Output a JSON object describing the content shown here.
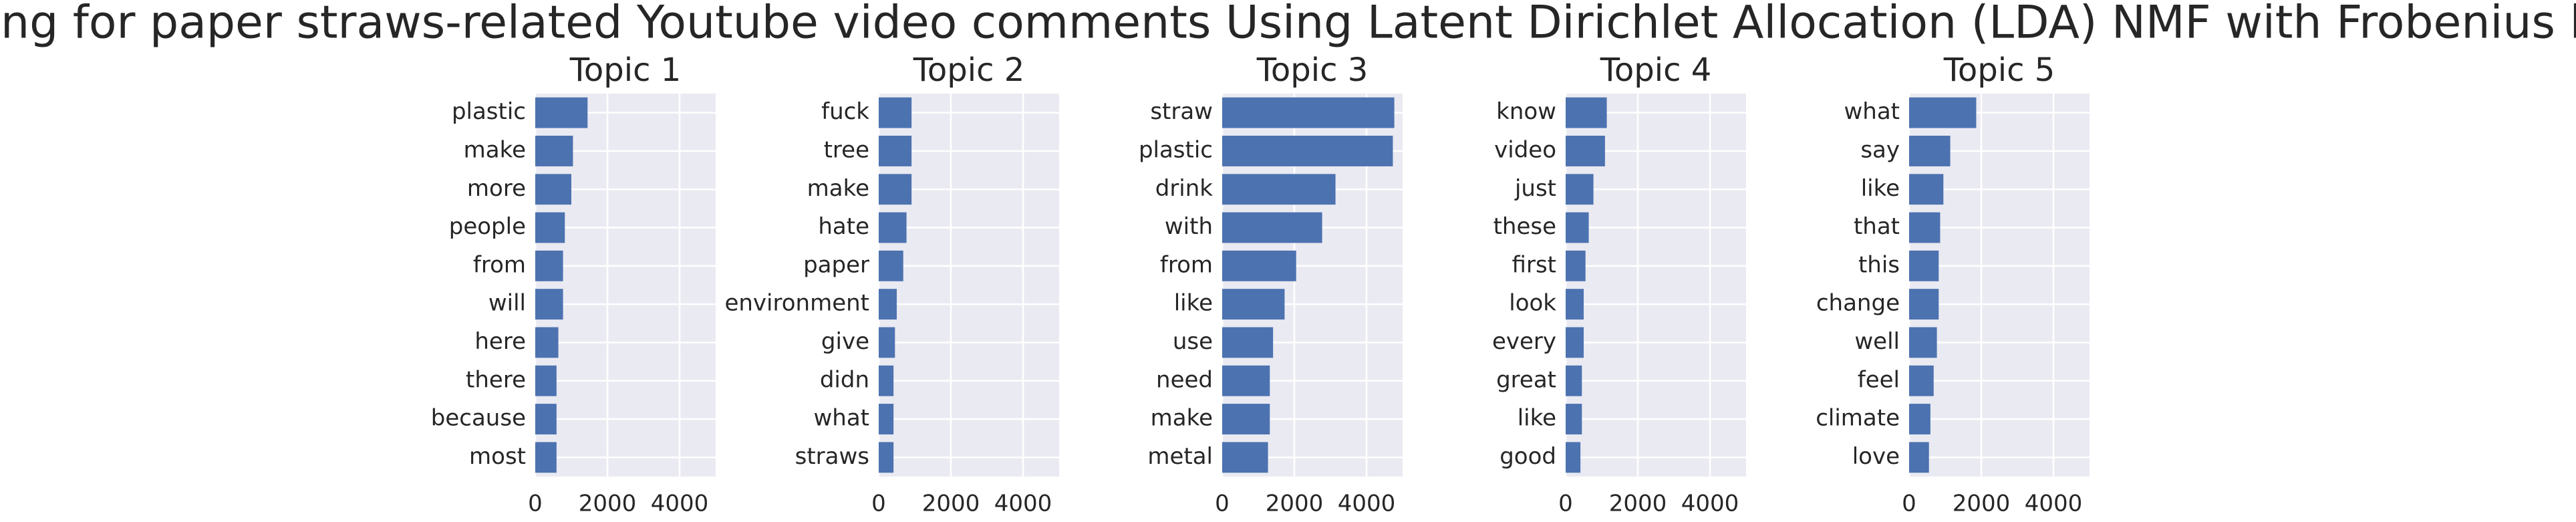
{
  "title": "Topic modeling for paper straws-related Youtube video comments Using Latent Dirichlet Allocation (LDA) NMF with Frobenius loss function",
  "chart_data": [
    {
      "type": "bar",
      "orientation": "horizontal",
      "title": "Topic 1",
      "color": "#4c72b0",
      "grid": true,
      "categories": [
        "plastic",
        "make",
        "more",
        "people",
        "from",
        "will",
        "here",
        "there",
        "because",
        "most"
      ],
      "values": [
        1450,
        1045,
        1000,
        820,
        770,
        770,
        640,
        590,
        590,
        590
      ],
      "xlim": [
        0,
        5000
      ],
      "xticks": [
        0,
        2000,
        4000
      ]
    },
    {
      "type": "bar",
      "orientation": "horizontal",
      "title": "Topic 2",
      "color": "#4c72b0",
      "grid": true,
      "categories": [
        "fuck",
        "tree",
        "make",
        "hate",
        "paper",
        "environment",
        "give",
        "didn",
        "what",
        "straws"
      ],
      "values": [
        910,
        910,
        910,
        770,
        680,
        500,
        450,
        410,
        410,
        410
      ],
      "xlim": [
        0,
        5000
      ],
      "xticks": [
        0,
        2000,
        4000
      ]
    },
    {
      "type": "bar",
      "orientation": "horizontal",
      "title": "Topic 3",
      "color": "#4c72b0",
      "grid": true,
      "categories": [
        "straw",
        "plastic",
        "drink",
        "with",
        "from",
        "like",
        "use",
        "need",
        "make",
        "metal"
      ],
      "values": [
        4770,
        4730,
        3140,
        2770,
        2050,
        1730,
        1410,
        1320,
        1320,
        1270
      ],
      "xlim": [
        0,
        5000
      ],
      "xticks": [
        0,
        2000,
        4000
      ]
    },
    {
      "type": "bar",
      "orientation": "horizontal",
      "title": "Topic 4",
      "color": "#4c72b0",
      "grid": true,
      "categories": [
        "know",
        "video",
        "just",
        "these",
        "first",
        "look",
        "every",
        "great",
        "like",
        "good"
      ],
      "values": [
        1140,
        1090,
        770,
        640,
        550,
        500,
        500,
        450,
        450,
        410
      ],
      "xlim": [
        0,
        5000
      ],
      "xticks": [
        0,
        2000,
        4000
      ]
    },
    {
      "type": "bar",
      "orientation": "horizontal",
      "title": "Topic 5",
      "color": "#4c72b0",
      "grid": true,
      "categories": [
        "what",
        "say",
        "like",
        "that",
        "this",
        "change",
        "well",
        "feel",
        "climate",
        "love"
      ],
      "values": [
        1860,
        1140,
        950,
        860,
        820,
        820,
        770,
        680,
        590,
        550
      ],
      "xlim": [
        0,
        5000
      ],
      "xticks": [
        0,
        2000,
        4000
      ]
    }
  ]
}
